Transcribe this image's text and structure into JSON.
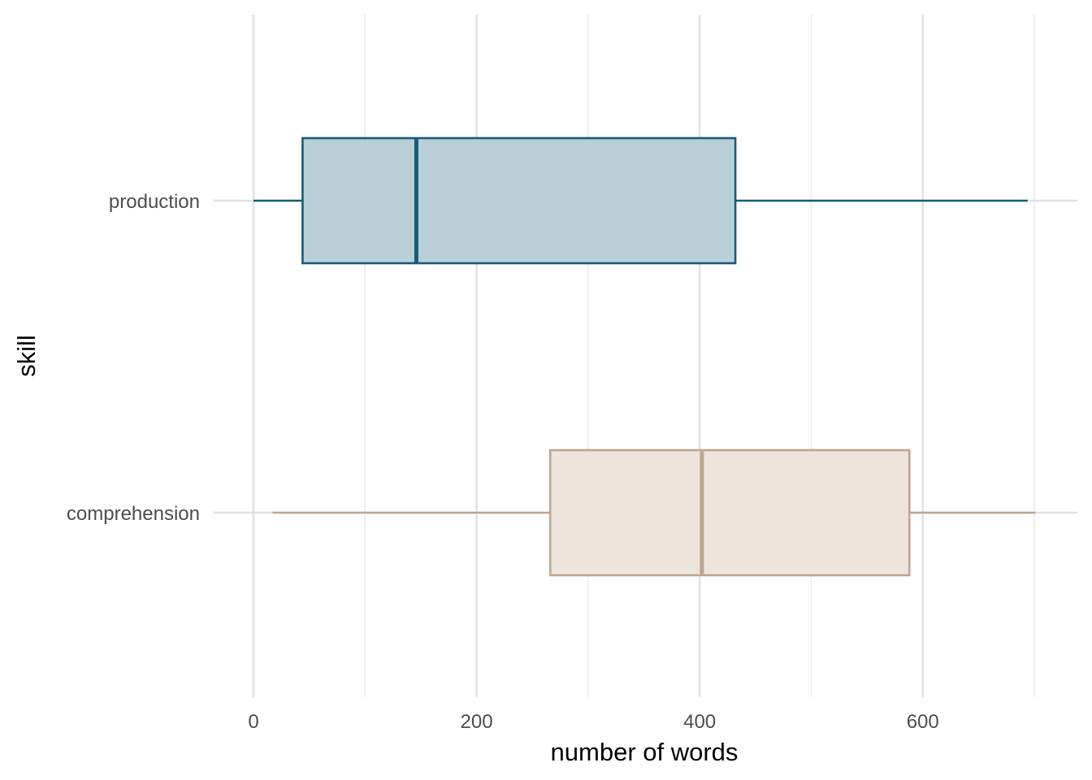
{
  "chart_data": {
    "type": "boxplot",
    "orientation": "horizontal",
    "xlabel": "number of words",
    "ylabel": "skill",
    "xlim": [
      -37,
      738
    ],
    "x_ticks": [
      0,
      200,
      400,
      600
    ],
    "categories": [
      "production",
      "comprehension"
    ],
    "series": [
      {
        "category": "production",
        "min": 0,
        "q1": 44,
        "median": 146,
        "q3": 432,
        "max": 694,
        "color": "#1a5a78",
        "fill": "#b6cdd7"
      },
      {
        "category": "comprehension",
        "min": 17,
        "q1": 266,
        "median": 402,
        "q3": 588,
        "max": 701,
        "color": "#bfa68f",
        "fill": "#ece3dc"
      }
    ],
    "grid": true,
    "legend": "none"
  }
}
